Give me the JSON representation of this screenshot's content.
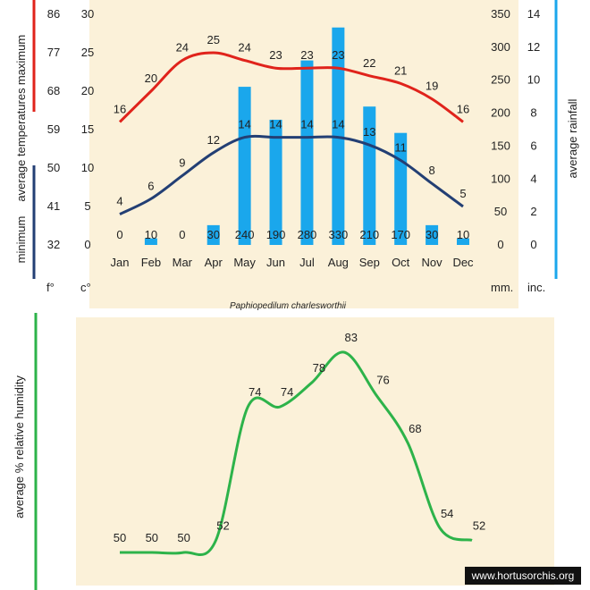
{
  "title": "Paphiopedilum charlesworthii",
  "watermark": "www.hortusorchis.org",
  "colors": {
    "max": "#e0231b",
    "min": "#233f74",
    "rain": "#1aa7ec",
    "humidity": "#2db34a",
    "background": "#fbf1d9"
  },
  "labels": {
    "maximum": "maximum",
    "average_temperatures": "average  temperatures",
    "minimum": "minimum",
    "average_rainfall": "average  rainfall",
    "humidity_axis": "average %  relative humidity",
    "unit_f": "f°",
    "unit_c": "c°",
    "unit_mm": "mm.",
    "unit_inc": "inc."
  },
  "chart_data": [
    {
      "type": "line",
      "title": "Paphiopedilum charlesworthii",
      "categories": [
        "Jan",
        "Feb",
        "Mar",
        "Apr",
        "May",
        "Jun",
        "Jul",
        "Aug",
        "Sep",
        "Oct",
        "Nov",
        "Dec"
      ],
      "ylim_celsius": [
        0,
        30
      ],
      "ylim_fahrenheit": [
        32,
        86
      ],
      "ylim_rain_mm": [
        0,
        350
      ],
      "ylim_rain_inches": [
        0,
        14
      ],
      "y_ticks_celsius": [
        0,
        5,
        10,
        15,
        20,
        25,
        30
      ],
      "y_ticks_fahrenheit": [
        32,
        41,
        50,
        59,
        68,
        77,
        86
      ],
      "y_ticks_mm": [
        0,
        50,
        100,
        150,
        200,
        250,
        300,
        350
      ],
      "y_ticks_inches": [
        0,
        2,
        4,
        6,
        8,
        10,
        12,
        14
      ],
      "series": [
        {
          "name": "maximum",
          "kind": "line",
          "values": [
            16,
            20,
            24,
            25,
            24,
            23,
            23,
            23,
            22,
            21,
            19,
            16
          ]
        },
        {
          "name": "minimum",
          "kind": "line",
          "values": [
            4,
            6,
            9,
            12,
            14,
            14,
            14,
            14,
            13,
            11,
            8,
            5
          ]
        },
        {
          "name": "average rainfall",
          "kind": "bar",
          "values": [
            0,
            10,
            0,
            30,
            240,
            190,
            280,
            330,
            210,
            170,
            30,
            10
          ]
        }
      ]
    },
    {
      "type": "line",
      "categories": [
        "Jan",
        "Feb",
        "Mar",
        "Apr",
        "May",
        "Jun",
        "Jul",
        "Aug",
        "Sep",
        "Oct",
        "Nov",
        "Dec"
      ],
      "ylabel": "average %  relative humidity",
      "series": [
        {
          "name": "humidity",
          "values": [
            50,
            50,
            50,
            52,
            74,
            74,
            78,
            83,
            76,
            68,
            54,
            52
          ]
        }
      ]
    }
  ]
}
